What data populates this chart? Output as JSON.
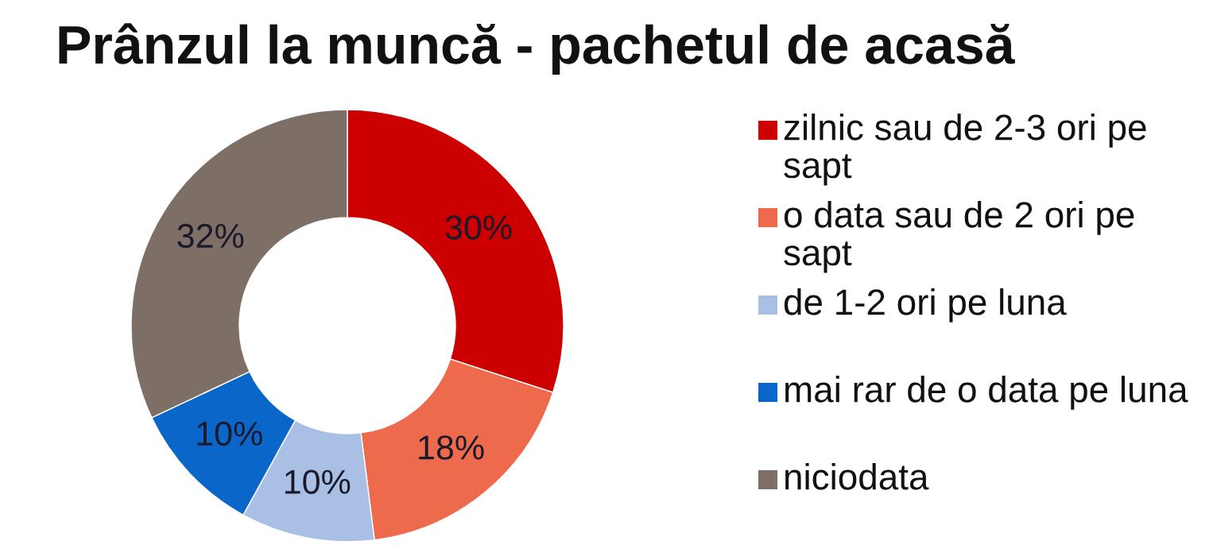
{
  "chart_data": {
    "type": "donut",
    "title": "Prânzul la muncă - pachetul de acasă",
    "categories": [
      "zilnic sau de 2-3 ori pe sapt",
      "o data sau de 2 ori pe sapt",
      "de 1-2 ori pe luna",
      "mai rar de o data pe luna",
      "niciodata"
    ],
    "values": [
      30,
      18,
      10,
      10,
      32
    ],
    "colors": [
      "#cc0000",
      "#ee6a4c",
      "#a9c0e4",
      "#0a66c8",
      "#7d6e66"
    ],
    "value_labels": [
      "30%",
      "18%",
      "10%",
      "10%",
      "32%"
    ],
    "legend": "right"
  }
}
